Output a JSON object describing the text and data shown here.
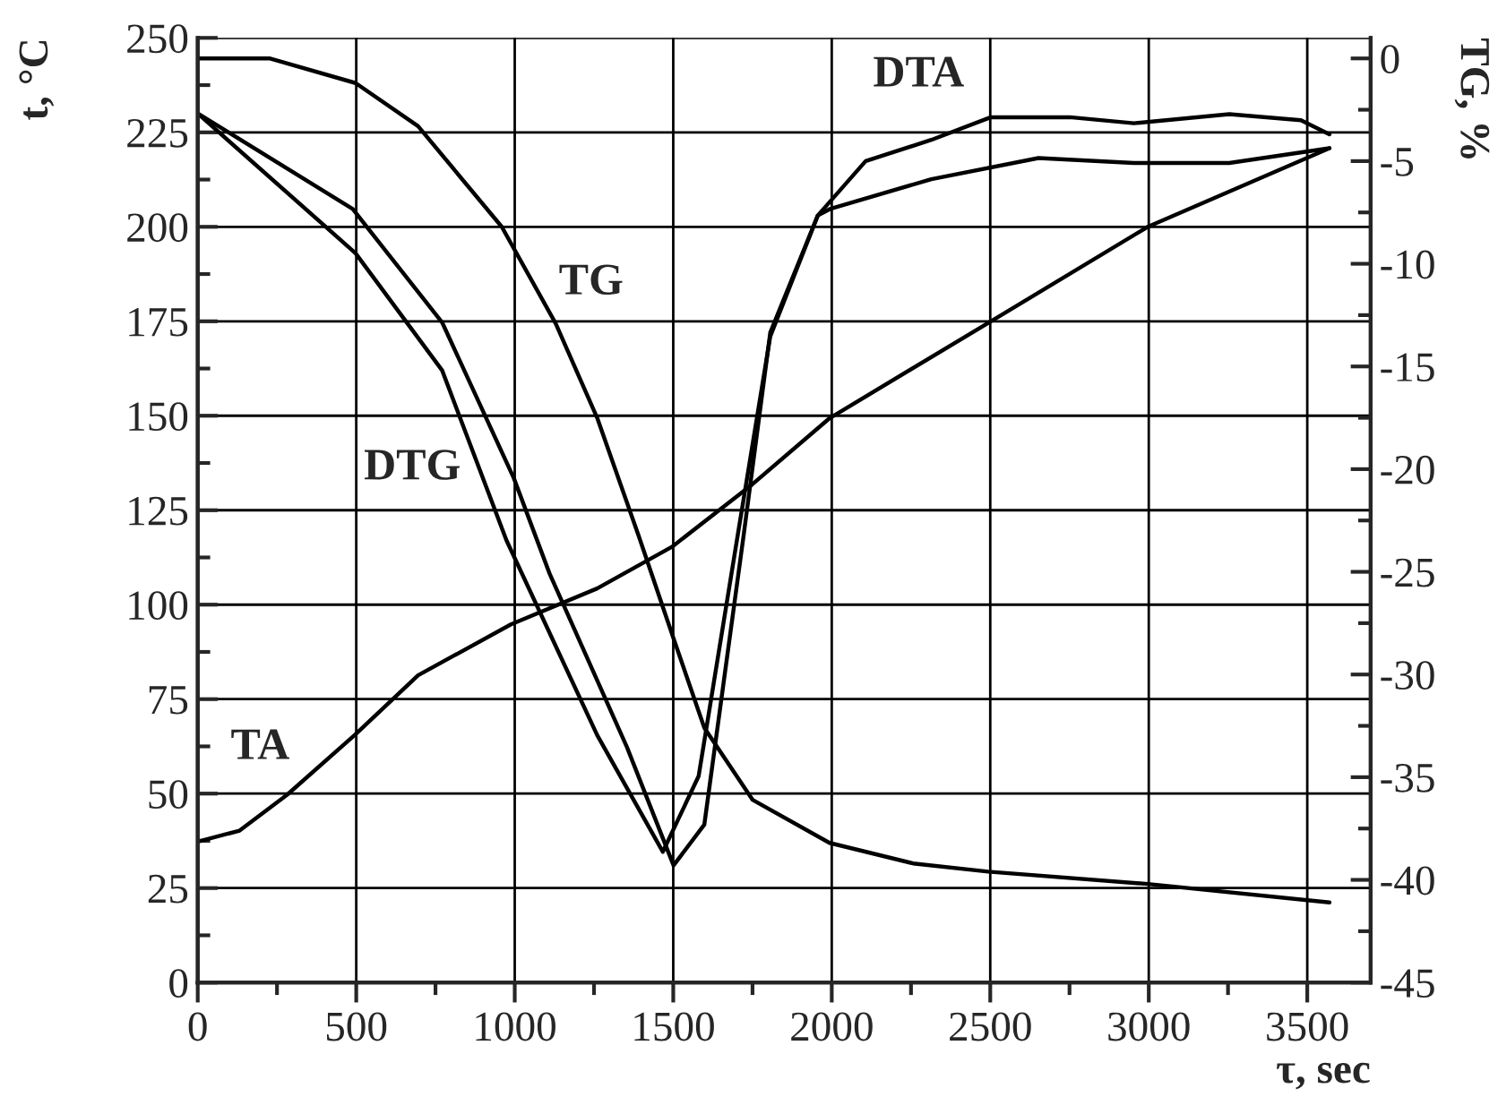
{
  "chart_data": {
    "type": "line",
    "xlabel": "τ, sec",
    "ylabel": "t, °C",
    "y2label": "TG, %",
    "xlim": [
      0,
      3700
    ],
    "xticks": [
      0,
      500,
      1000,
      1500,
      2000,
      2500,
      3000,
      3500
    ],
    "ylim": [
      0,
      250
    ],
    "yticks": [
      0,
      25,
      50,
      75,
      100,
      125,
      150,
      175,
      200,
      225,
      250
    ],
    "y2lim": [
      -45,
      1
    ],
    "y2ticks": [
      -45,
      -40,
      -35,
      -30,
      -25,
      -20,
      -15,
      -10,
      -5,
      0
    ],
    "grid": true,
    "legend": false,
    "marker": "none",
    "line_style": "solid",
    "series": [
      {
        "name": "TG",
        "color": "#000000",
        "axis": "y2",
        "x": [
          0,
          226,
          498,
          695,
          959,
          1129,
          1260,
          1392,
          1500,
          1598,
          1750,
          1993,
          2257,
          2494,
          2997,
          3570
        ],
        "values": [
          0,
          0,
          -1.2,
          -3.3,
          -8.2,
          -12.9,
          -17.5,
          -23.3,
          -28.2,
          -32.6,
          -36.1,
          -38.2,
          -39.2,
          -39.6,
          -40.2,
          -41.1
        ]
      },
      {
        "name": "DTG",
        "color": "#000000",
        "x": [
          0,
          498,
          771,
          974,
          1260,
          1467,
          1580,
          1702,
          1806,
          1956,
          1994,
          2314,
          2652,
          2953,
          3254,
          3570
        ],
        "values": [
          230,
          193,
          162,
          117,
          65.5,
          34.6,
          54.6,
          117.7,
          171,
          203,
          204.7,
          212.6,
          218.2,
          216.9,
          216.9,
          220.8
        ]
      },
      {
        "name": "DTA",
        "color": "#000000",
        "x": [
          0,
          489,
          771,
          997,
          1110,
          1354,
          1501,
          1598,
          1721,
          1806,
          1956,
          2107,
          2314,
          2502,
          2751,
          2953,
          3254,
          3480,
          3570
        ],
        "values": [
          230,
          204.7,
          174.7,
          133.5,
          108.2,
          62.3,
          31,
          41.8,
          117.7,
          172,
          203,
          217.4,
          223,
          229,
          229,
          227.4,
          229.8,
          228.2,
          224.5
        ]
      },
      {
        "name": "TA",
        "color": "#000000",
        "x": [
          0,
          132,
          282,
          495,
          695,
          988,
          1260,
          1496,
          1750,
          1994,
          2496,
          2997,
          3570
        ],
        "values": [
          37.3,
          40.2,
          49.7,
          65.5,
          81.3,
          94.8,
          104.3,
          115.3,
          131.9,
          149.4,
          174.7,
          200,
          220.8
        ]
      }
    ]
  }
}
